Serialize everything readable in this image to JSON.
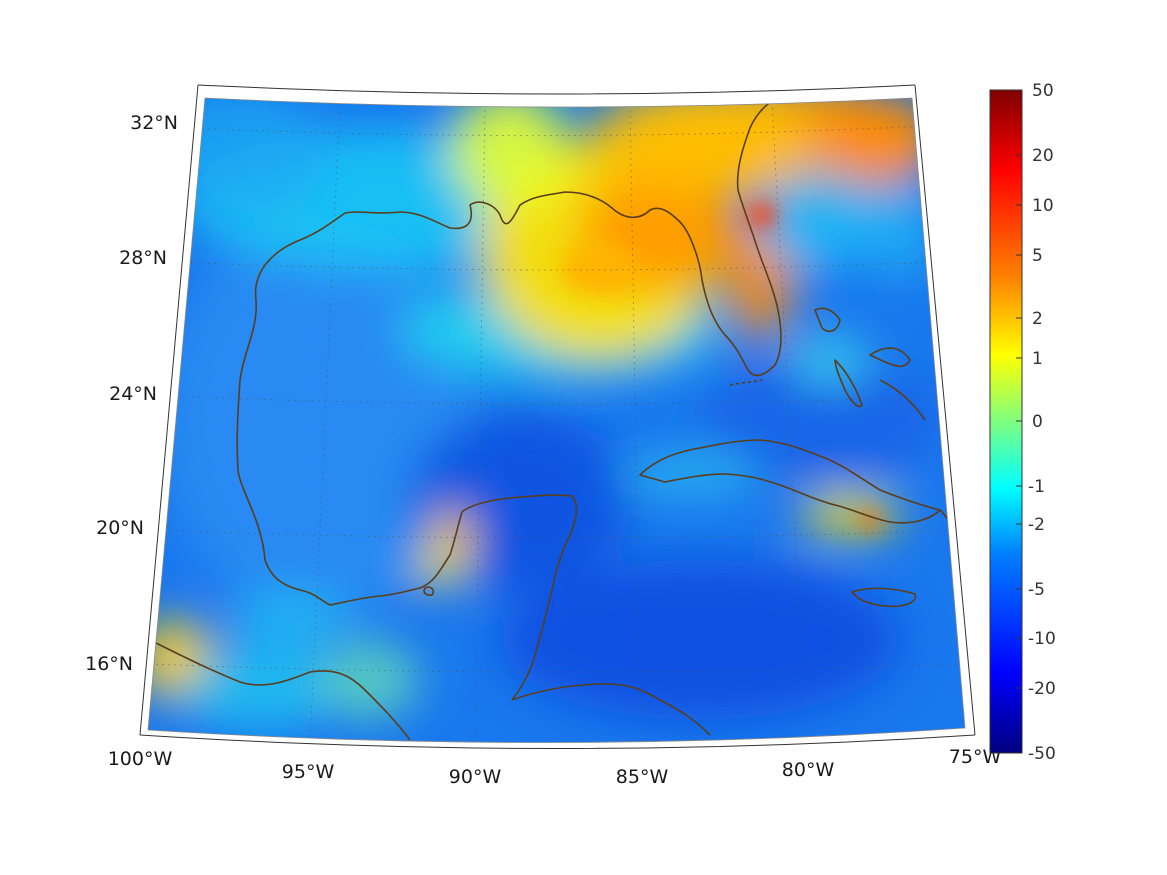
{
  "map": {
    "type": "heatmap",
    "region": "Gulf of Mexico and Caribbean",
    "lat_labels": [
      "32°N",
      "28°N",
      "24°N",
      "20°N",
      "16°N"
    ],
    "lon_labels": [
      "100°W",
      "95°W",
      "90°W",
      "85°W",
      "80°W",
      "75°W"
    ],
    "coastline_color": "#5a3e1b",
    "graticule": "dotted"
  },
  "colorbar": {
    "colormap": "jet",
    "ticks": [
      "50",
      "20",
      "10",
      "5",
      "2",
      "1",
      "0",
      "-1",
      "-2",
      "-5",
      "-10",
      "-20",
      "-50"
    ]
  }
}
